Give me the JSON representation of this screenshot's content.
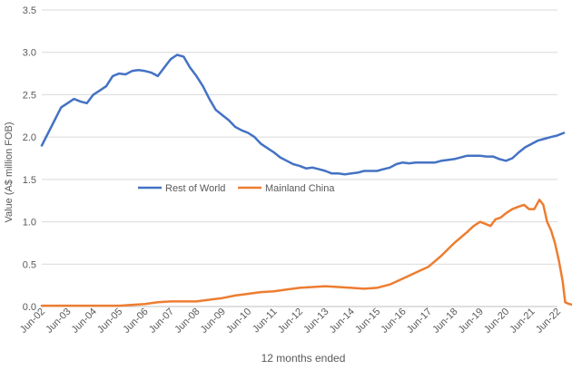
{
  "chart_data": {
    "type": "line",
    "title": "",
    "xlabel": "12 months ended",
    "ylabel": "Value (A$ million FOB)",
    "ylim": [
      0,
      3.5
    ],
    "yticks": [
      "0.0",
      "0.5",
      "1.0",
      "1.5",
      "2.0",
      "2.5",
      "3.0",
      "3.5"
    ],
    "categories": [
      "Jun-02",
      "Jun-03",
      "Jun-04",
      "Jun-05",
      "Jun-06",
      "Jun-07",
      "Jun-08",
      "Jun-09",
      "Jun-10",
      "Jun-11",
      "Jun-12",
      "Jun-13",
      "Jun-14",
      "Jun-15",
      "Jun-16",
      "Jun-17",
      "Jun-18",
      "Jun-19",
      "Jun-20",
      "Jun-21",
      "Jun-22"
    ],
    "grid": "horizontal",
    "legend_position": "center",
    "series": [
      {
        "name": "Rest of World",
        "color": "#4472C4",
        "points": [
          [
            0,
            1.9
          ],
          [
            0.25,
            2.05
          ],
          [
            0.5,
            2.2
          ],
          [
            0.75,
            2.35
          ],
          [
            1,
            2.4
          ],
          [
            1.25,
            2.45
          ],
          [
            1.5,
            2.42
          ],
          [
            1.75,
            2.4
          ],
          [
            2,
            2.5
          ],
          [
            2.25,
            2.55
          ],
          [
            2.5,
            2.6
          ],
          [
            2.75,
            2.72
          ],
          [
            3,
            2.75
          ],
          [
            3.25,
            2.74
          ],
          [
            3.5,
            2.78
          ],
          [
            3.75,
            2.79
          ],
          [
            4,
            2.78
          ],
          [
            4.25,
            2.76
          ],
          [
            4.5,
            2.72
          ],
          [
            4.75,
            2.82
          ],
          [
            5,
            2.92
          ],
          [
            5.25,
            2.97
          ],
          [
            5.5,
            2.95
          ],
          [
            5.75,
            2.82
          ],
          [
            6,
            2.72
          ],
          [
            6.25,
            2.6
          ],
          [
            6.5,
            2.45
          ],
          [
            6.75,
            2.32
          ],
          [
            7,
            2.26
          ],
          [
            7.25,
            2.2
          ],
          [
            7.5,
            2.12
          ],
          [
            7.75,
            2.08
          ],
          [
            8,
            2.05
          ],
          [
            8.25,
            2.0
          ],
          [
            8.5,
            1.92
          ],
          [
            8.75,
            1.87
          ],
          [
            9,
            1.82
          ],
          [
            9.25,
            1.76
          ],
          [
            9.5,
            1.72
          ],
          [
            9.75,
            1.68
          ],
          [
            10,
            1.66
          ],
          [
            10.25,
            1.63
          ],
          [
            10.5,
            1.64
          ],
          [
            10.75,
            1.62
          ],
          [
            11,
            1.6
          ],
          [
            11.25,
            1.57
          ],
          [
            11.5,
            1.57
          ],
          [
            11.75,
            1.56
          ],
          [
            12,
            1.57
          ],
          [
            12.25,
            1.58
          ],
          [
            12.5,
            1.6
          ],
          [
            12.75,
            1.6
          ],
          [
            13,
            1.6
          ],
          [
            13.25,
            1.62
          ],
          [
            13.5,
            1.64
          ],
          [
            13.75,
            1.68
          ],
          [
            14,
            1.7
          ],
          [
            14.25,
            1.69
          ],
          [
            14.5,
            1.7
          ],
          [
            14.75,
            1.7
          ],
          [
            15,
            1.7
          ],
          [
            15.25,
            1.7
          ],
          [
            15.5,
            1.72
          ],
          [
            15.75,
            1.73
          ],
          [
            16,
            1.74
          ],
          [
            16.25,
            1.76
          ],
          [
            16.5,
            1.78
          ],
          [
            16.75,
            1.78
          ],
          [
            17,
            1.78
          ],
          [
            17.25,
            1.77
          ],
          [
            17.5,
            1.77
          ],
          [
            17.75,
            1.74
          ],
          [
            18,
            1.72
          ],
          [
            18.25,
            1.75
          ],
          [
            18.5,
            1.82
          ],
          [
            18.75,
            1.88
          ],
          [
            19,
            1.92
          ],
          [
            19.25,
            1.96
          ],
          [
            19.5,
            1.98
          ],
          [
            19.75,
            2.0
          ],
          [
            20,
            2.02
          ],
          [
            20.25,
            2.05
          ]
        ]
      },
      {
        "name": "Mainland China",
        "color": "#ED7D31",
        "points": [
          [
            0,
            0.01
          ],
          [
            1,
            0.01
          ],
          [
            2,
            0.01
          ],
          [
            3,
            0.01
          ],
          [
            4,
            0.03
          ],
          [
            4.5,
            0.05
          ],
          [
            5,
            0.06
          ],
          [
            5.5,
            0.06
          ],
          [
            6,
            0.06
          ],
          [
            6.5,
            0.08
          ],
          [
            7,
            0.1
          ],
          [
            7.5,
            0.13
          ],
          [
            8,
            0.15
          ],
          [
            8.5,
            0.17
          ],
          [
            9,
            0.18
          ],
          [
            9.5,
            0.2
          ],
          [
            10,
            0.22
          ],
          [
            10.5,
            0.23
          ],
          [
            11,
            0.24
          ],
          [
            11.5,
            0.23
          ],
          [
            12,
            0.22
          ],
          [
            12.5,
            0.21
          ],
          [
            13,
            0.22
          ],
          [
            13.5,
            0.26
          ],
          [
            14,
            0.33
          ],
          [
            14.5,
            0.4
          ],
          [
            15,
            0.47
          ],
          [
            15.5,
            0.6
          ],
          [
            16,
            0.75
          ],
          [
            16.5,
            0.88
          ],
          [
            16.75,
            0.95
          ],
          [
            17,
            1.0
          ],
          [
            17.25,
            0.97
          ],
          [
            17.4,
            0.95
          ],
          [
            17.6,
            1.03
          ],
          [
            17.8,
            1.05
          ],
          [
            18,
            1.1
          ],
          [
            18.25,
            1.15
          ],
          [
            18.5,
            1.18
          ],
          [
            18.7,
            1.2
          ],
          [
            18.9,
            1.15
          ],
          [
            19.1,
            1.15
          ],
          [
            19.3,
            1.26
          ],
          [
            19.45,
            1.2
          ],
          [
            19.6,
            1.0
          ],
          [
            19.75,
            0.9
          ],
          [
            19.9,
            0.75
          ],
          [
            20.05,
            0.55
          ],
          [
            20.2,
            0.3
          ],
          [
            20.3,
            0.05
          ],
          [
            20.45,
            0.03
          ],
          [
            20.6,
            0.02
          ],
          [
            20.8,
            0.02
          ],
          [
            21,
            0.02
          ]
        ]
      }
    ]
  }
}
